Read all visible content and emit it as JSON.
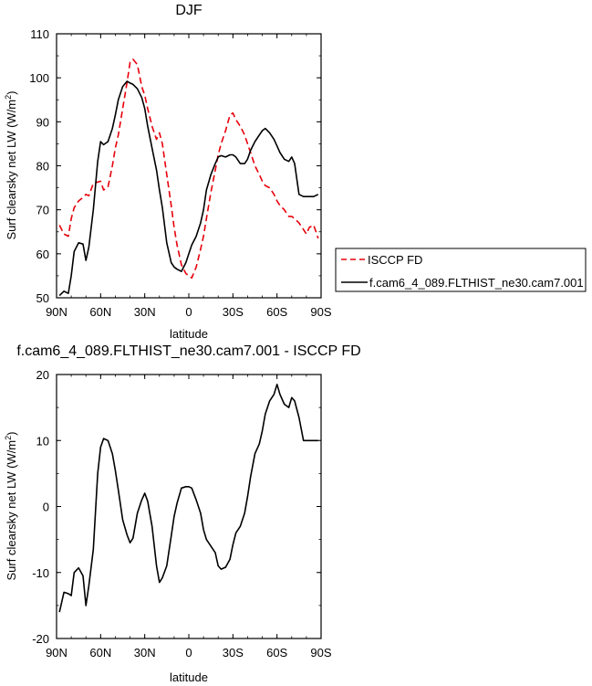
{
  "chart_data": [
    {
      "type": "line",
      "title": "DJF",
      "xlabel": "latitude",
      "ylabel": "Surf clearsky net LW (W/m²)",
      "ylabel_parts": [
        "Surf clearsky net LW (W/m",
        "2",
        ")"
      ],
      "xlim": [
        90,
        -90
      ],
      "ylim": [
        50,
        110
      ],
      "x_ticks": [
        {
          "value": 90,
          "label": "90N"
        },
        {
          "value": 60,
          "label": "60N"
        },
        {
          "value": 30,
          "label": "30N"
        },
        {
          "value": 0,
          "label": "0"
        },
        {
          "value": -30,
          "label": "30S"
        },
        {
          "value": -60,
          "label": "60S"
        },
        {
          "value": -90,
          "label": "90S"
        }
      ],
      "y_ticks": [
        50,
        60,
        70,
        80,
        90,
        100,
        110
      ],
      "grid": false,
      "legend_position": "right",
      "series": [
        {
          "name": "ISCCP FD",
          "color": "#e8000b",
          "dash": "dashed",
          "x": [
            88,
            85,
            82,
            80,
            78,
            75,
            72,
            70,
            68,
            65,
            62,
            60,
            58,
            55,
            52,
            50,
            48,
            45,
            42,
            40,
            38,
            35,
            32,
            30,
            28,
            25,
            22,
            20,
            18,
            15,
            12,
            10,
            8,
            5,
            2,
            0,
            -2,
            -5,
            -8,
            -10,
            -12,
            -15,
            -18,
            -20,
            -22,
            -25,
            -28,
            -30,
            -32,
            -35,
            -38,
            -40,
            -42,
            -45,
            -48,
            -50,
            -52,
            -55,
            -58,
            -60,
            -62,
            -65,
            -68,
            -70,
            -72,
            -75,
            -78,
            -80,
            -82,
            -85,
            -88
          ],
          "values": [
            66.5,
            64.5,
            64.0,
            68.0,
            70.5,
            72.0,
            72.8,
            73.5,
            73.2,
            76.0,
            76.3,
            76.5,
            74.5,
            75.2,
            80.0,
            84.0,
            87.0,
            93.0,
            99.0,
            103.5,
            104.2,
            103.0,
            98.0,
            96.0,
            93.0,
            89.0,
            86.0,
            87.5,
            85.0,
            78.0,
            71.0,
            66.0,
            62.0,
            57.5,
            55.5,
            55.0,
            54.5,
            57.0,
            61.0,
            64.0,
            68.0,
            74.0,
            79.0,
            82.5,
            85.0,
            88.0,
            91.5,
            92.0,
            90.5,
            89.0,
            87.0,
            85.0,
            83.0,
            80.0,
            78.0,
            76.5,
            75.5,
            75.0,
            73.5,
            72.0,
            71.0,
            70.0,
            68.5,
            68.5,
            68.0,
            67.0,
            65.5,
            64.5,
            66.0,
            66.5,
            63.5
          ]
        },
        {
          "name": "f.cam6_4_089.FLTHIST_ne30.cam7.001",
          "color": "#000000",
          "dash": "solid",
          "x": [
            88,
            85,
            82,
            80,
            78,
            75,
            72,
            70,
            68,
            65,
            62,
            60,
            58,
            55,
            52,
            50,
            48,
            45,
            42,
            40,
            38,
            35,
            32,
            30,
            28,
            25,
            22,
            20,
            18,
            15,
            12,
            10,
            8,
            5,
            2,
            0,
            -2,
            -5,
            -8,
            -10,
            -12,
            -15,
            -18,
            -20,
            -22,
            -25,
            -28,
            -30,
            -32,
            -35,
            -38,
            -40,
            -42,
            -45,
            -48,
            -50,
            -52,
            -55,
            -58,
            -60,
            -62,
            -65,
            -68,
            -70,
            -72,
            -75,
            -78,
            -80,
            -82,
            -85,
            -88
          ],
          "values": [
            50.5,
            51.5,
            51.0,
            55.0,
            60.5,
            62.5,
            62.2,
            58.5,
            61.5,
            70.0,
            81.0,
            85.5,
            84.8,
            85.5,
            88.5,
            91.5,
            95.0,
            98.0,
            99.2,
            98.8,
            98.5,
            97.5,
            95.5,
            93.0,
            89.0,
            84.0,
            79.0,
            74.5,
            70.5,
            62.5,
            58.0,
            57.0,
            56.5,
            56.0,
            58.0,
            60.0,
            62.0,
            64.0,
            67.0,
            70.0,
            74.5,
            78.0,
            80.5,
            82.0,
            82.3,
            82.0,
            82.5,
            82.5,
            82.0,
            80.5,
            80.5,
            81.5,
            83.5,
            85.5,
            87.0,
            88.0,
            88.5,
            87.5,
            86.0,
            84.5,
            83.0,
            81.5,
            81.0,
            82.0,
            80.5,
            73.5,
            73.0,
            73.0,
            73.0,
            73.0,
            73.5
          ]
        }
      ]
    },
    {
      "type": "line",
      "title": "f.cam6_4_089.FLTHIST_ne30.cam7.001 - ISCCP FD",
      "xlabel": "latitude",
      "ylabel": "Surf clearsky net LW (W/m²)",
      "ylabel_parts": [
        "Surf clearsky net LW (W/m",
        "2",
        ")"
      ],
      "xlim": [
        90,
        -90
      ],
      "ylim": [
        -20,
        20
      ],
      "x_ticks": [
        {
          "value": 90,
          "label": "90N"
        },
        {
          "value": 60,
          "label": "60N"
        },
        {
          "value": 30,
          "label": "30N"
        },
        {
          "value": 0,
          "label": "0"
        },
        {
          "value": -30,
          "label": "30S"
        },
        {
          "value": -60,
          "label": "60S"
        },
        {
          "value": -90,
          "label": "90S"
        }
      ],
      "y_ticks": [
        -20,
        -10,
        0,
        10,
        20
      ],
      "grid": false,
      "series": [
        {
          "color": "#000000",
          "dash": "solid",
          "x": [
            88,
            85,
            82,
            80,
            78,
            75,
            72,
            70,
            68,
            65,
            62,
            60,
            58,
            55,
            52,
            50,
            48,
            45,
            42,
            40,
            38,
            35,
            32,
            30,
            28,
            25,
            22,
            20,
            18,
            15,
            12,
            10,
            8,
            5,
            2,
            0,
            -2,
            -5,
            -8,
            -10,
            -12,
            -15,
            -18,
            -20,
            -22,
            -25,
            -28,
            -30,
            -32,
            -35,
            -38,
            -40,
            -42,
            -45,
            -48,
            -50,
            -52,
            -55,
            -58,
            -60,
            -62,
            -65,
            -68,
            -70,
            -72,
            -75,
            -78,
            -80,
            -82,
            -85,
            -88
          ],
          "values": [
            -16.0,
            -13.0,
            -13.2,
            -13.5,
            -10.0,
            -9.3,
            -10.5,
            -15.0,
            -12.0,
            -6.5,
            5.0,
            9.0,
            10.3,
            10.0,
            8.0,
            5.5,
            2.5,
            -2.0,
            -4.3,
            -5.5,
            -4.8,
            -1.0,
            1.0,
            2.0,
            0.8,
            -3.0,
            -9.0,
            -11.5,
            -10.8,
            -9.0,
            -4.5,
            -1.5,
            0.5,
            2.8,
            3.0,
            3.0,
            2.8,
            1.0,
            -1.0,
            -3.5,
            -5.0,
            -6.0,
            -7.0,
            -9.0,
            -9.5,
            -9.2,
            -8.0,
            -5.8,
            -4.0,
            -3.0,
            -1.0,
            1.5,
            4.5,
            8.0,
            9.5,
            11.5,
            14.0,
            16.0,
            17.0,
            18.5,
            17.0,
            15.5,
            15.0,
            16.5,
            16.0,
            13.5,
            10.0,
            10.0,
            10.0,
            10.0,
            10.0
          ]
        }
      ]
    }
  ]
}
